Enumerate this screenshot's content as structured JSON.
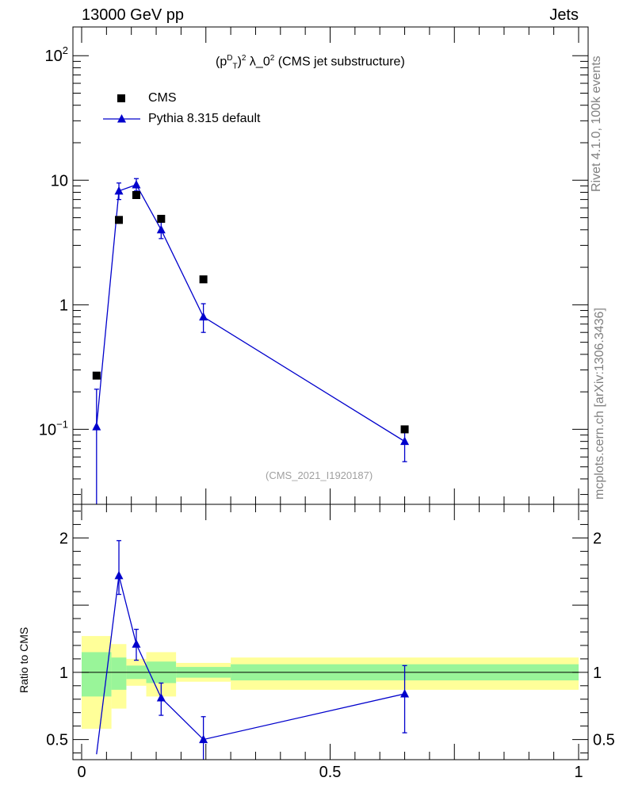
{
  "header": {
    "left": "13000 GeV pp",
    "right": "Jets"
  },
  "side_labels": {
    "rivet": "Rivet 4.1.0,  100k events",
    "mcplots": "mcplots.cern.ch [arXiv:1306.3436]"
  },
  "title_parts": {
    "open": "(p",
    "sup_d": "D",
    "sub_t": "T",
    "close_sq": ")",
    "sup_2": "2",
    "lambda": " λ_0",
    "sup_2b": "2",
    "rest": " (CMS jet substructure)"
  },
  "watermark": "(CMS_2021_I1920187)",
  "legend": {
    "cms": "CMS",
    "pythia": "Pythia 8.315 default"
  },
  "ratio_ylabel": "Ratio to CMS",
  "colors": {
    "mc": "#0000cc",
    "data": "#000000",
    "band_inner": "#99f599",
    "band_outer": "#ffff99"
  },
  "chart_data": [
    {
      "type": "scatter",
      "yscale": "log",
      "xlim": [
        0,
        1
      ],
      "ylim": [
        0.025,
        170
      ],
      "yticks": [
        {
          "v": 0.1,
          "label": "10^-1"
        },
        {
          "v": 1,
          "label": "1"
        },
        {
          "v": 10,
          "label": "10"
        },
        {
          "v": 100,
          "label": "10^2"
        }
      ],
      "series": [
        {
          "name": "CMS",
          "x": [
            0.03,
            0.075,
            0.11,
            0.16,
            0.245,
            0.65
          ],
          "y": [
            0.27,
            4.8,
            7.6,
            4.9,
            1.6,
            0.1
          ]
        },
        {
          "name": "Pythia 8.315 default",
          "x": [
            0.03,
            0.075,
            0.11,
            0.16,
            0.245,
            0.65
          ],
          "y": [
            0.105,
            8.2,
            9.2,
            4.0,
            0.8,
            0.08
          ],
          "ylow": [
            0.0,
            7.0,
            8.2,
            3.4,
            0.6,
            0.055
          ],
          "yhigh": [
            0.21,
            9.5,
            10.3,
            4.6,
            1.02,
            0.1
          ]
        }
      ]
    },
    {
      "type": "line",
      "ylim": [
        0.35,
        2.25
      ],
      "xlim": [
        0,
        1
      ],
      "xticks": [
        {
          "v": 0,
          "label": "0"
        },
        {
          "v": 0.5,
          "label": "0.5"
        },
        {
          "v": 1,
          "label": "1"
        }
      ],
      "yticks": [
        {
          "v": 0.5,
          "label": "0.5"
        },
        {
          "v": 1,
          "label": "1"
        },
        {
          "v": 2,
          "label": "2"
        }
      ],
      "bands": [
        {
          "x0": 0.0,
          "x1": 0.06,
          "inner": [
            0.82,
            1.15
          ],
          "outer": [
            0.58,
            1.27
          ]
        },
        {
          "x0": 0.06,
          "x1": 0.09,
          "inner": [
            0.87,
            1.11
          ],
          "outer": [
            0.73,
            1.21
          ]
        },
        {
          "x0": 0.09,
          "x1": 0.13,
          "inner": [
            0.95,
            1.05
          ],
          "outer": [
            0.9,
            1.1
          ]
        },
        {
          "x0": 0.13,
          "x1": 0.19,
          "inner": [
            0.92,
            1.08
          ],
          "outer": [
            0.82,
            1.15
          ]
        },
        {
          "x0": 0.19,
          "x1": 0.3,
          "inner": [
            0.96,
            1.04
          ],
          "outer": [
            0.93,
            1.07
          ]
        },
        {
          "x0": 0.3,
          "x1": 1.0,
          "inner": [
            0.94,
            1.06
          ],
          "outer": [
            0.87,
            1.11
          ]
        }
      ],
      "series": [
        {
          "name": "Pythia/CMS",
          "x": [
            0.03,
            0.075,
            0.11,
            0.16,
            0.245,
            0.65
          ],
          "y": [
            0.39,
            1.72,
            1.21,
            0.81,
            0.5,
            0.84
          ],
          "ylow": [
            null,
            1.58,
            1.09,
            0.68,
            0.33,
            0.55
          ],
          "yhigh": [
            null,
            1.98,
            1.32,
            0.92,
            0.67,
            1.05
          ]
        }
      ]
    }
  ]
}
